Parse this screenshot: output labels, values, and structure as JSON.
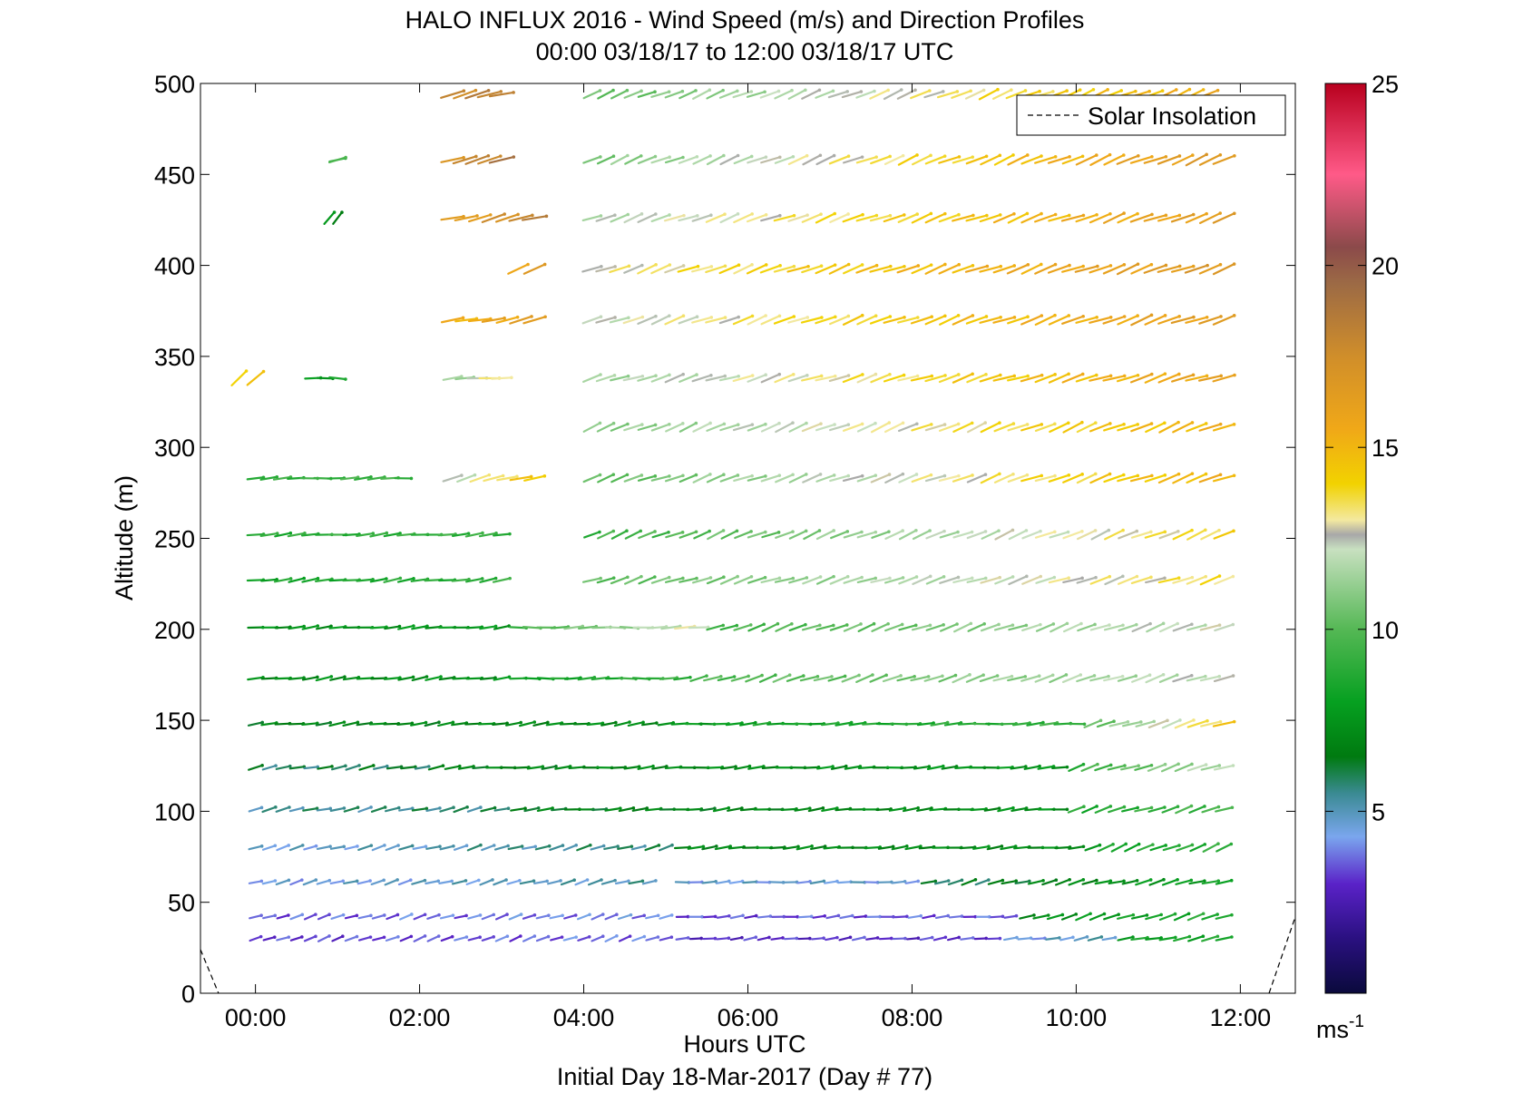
{
  "chart_data": {
    "type": "wind-barb",
    "title": "HALO INFLUX 2016 - Wind Speed (m/s) and Direction Profiles",
    "subtitle": "00:00 03/18/17 to 12:00 03/18/17  UTC",
    "xlabel": "Hours UTC",
    "xlabel2": "Initial Day 18-Mar-2017 (Day # 77)",
    "ylabel": "Altitude (m)",
    "xlim": [
      -0.67,
      12.67
    ],
    "ylim": [
      0,
      500
    ],
    "x_ticks": [
      {
        "value": 0,
        "label": "00:00"
      },
      {
        "value": 2,
        "label": "02:00"
      },
      {
        "value": 4,
        "label": "04:00"
      },
      {
        "value": 6,
        "label": "06:00"
      },
      {
        "value": 8,
        "label": "08:00"
      },
      {
        "value": 10,
        "label": "10:00"
      },
      {
        "value": 12,
        "label": "12:00"
      }
    ],
    "y_ticks": [
      {
        "value": 0,
        "label": "0"
      },
      {
        "value": 50,
        "label": "50"
      },
      {
        "value": 100,
        "label": "100"
      },
      {
        "value": 150,
        "label": "150"
      },
      {
        "value": 200,
        "label": "200"
      },
      {
        "value": 250,
        "label": "250"
      },
      {
        "value": 300,
        "label": "300"
      },
      {
        "value": 350,
        "label": "350"
      },
      {
        "value": 400,
        "label": "400"
      },
      {
        "value": 450,
        "label": "450"
      },
      {
        "value": 500,
        "label": "500"
      }
    ],
    "legend": {
      "label": "Solar Insolation",
      "position": "top-right",
      "style": "dashed"
    },
    "solar_insolation": [
      [
        [
          -0.67,
          24
        ],
        [
          -0.45,
          0
        ]
      ],
      [
        [
          12.35,
          0
        ],
        [
          12.67,
          42
        ]
      ]
    ],
    "colorbar": {
      "range": [
        0,
        25
      ],
      "ticks": [
        {
          "value": 5,
          "label": "5"
        },
        {
          "value": 10,
          "label": "10"
        },
        {
          "value": 15,
          "label": "15"
        },
        {
          "value": 20,
          "label": "20"
        },
        {
          "value": 25,
          "label": "25"
        }
      ],
      "unit": "ms",
      "unit_exponent": "-1",
      "stops": [
        {
          "v": 0,
          "color": "#0a0a3c"
        },
        {
          "v": 1.5,
          "color": "#2a1080"
        },
        {
          "v": 3,
          "color": "#5a22c8"
        },
        {
          "v": 4.3,
          "color": "#7aa6ee"
        },
        {
          "v": 5.5,
          "color": "#3a8a92"
        },
        {
          "v": 6.5,
          "color": "#007a10"
        },
        {
          "v": 8,
          "color": "#06a020"
        },
        {
          "v": 10,
          "color": "#55b855"
        },
        {
          "v": 12.2,
          "color": "#c8e0c0"
        },
        {
          "v": 12.6,
          "color": "#a8a8a8"
        },
        {
          "v": 13,
          "color": "#f3e9a0"
        },
        {
          "v": 14,
          "color": "#f2d200"
        },
        {
          "v": 15.5,
          "color": "#f0a818"
        },
        {
          "v": 17.5,
          "color": "#d08e2a"
        },
        {
          "v": 19.5,
          "color": "#9c6a45"
        },
        {
          "v": 20.5,
          "color": "#8b4a4a"
        },
        {
          "v": 22.5,
          "color": "#ff5a88"
        },
        {
          "v": 25,
          "color": "#b8001e"
        }
      ]
    },
    "altitudes": [
      30,
      42,
      61,
      80,
      101,
      124,
      148,
      173,
      201,
      227,
      252,
      283,
      311,
      338,
      370,
      398,
      426,
      458,
      494
    ],
    "times_start": 0,
    "times_step": 0.1667,
    "times_count": 60,
    "rows": [
      {
        "alt": 30,
        "segments": [
          {
            "t0": 0.0,
            "t1": 5.0,
            "s0": 3.2,
            "s1": 3.8,
            "dir": 250
          },
          {
            "t0": 5.2,
            "t1": 9.0,
            "s0": 3.0,
            "s1": 3.2,
            "dir": 262
          },
          {
            "t0": 9.2,
            "t1": 10.4,
            "s0": 4.2,
            "s1": 5.2,
            "dir": 260
          },
          {
            "t0": 10.6,
            "t1": 11.8,
            "s0": 8.0,
            "s1": 8.5,
            "dir": 258
          }
        ]
      },
      {
        "alt": 42,
        "segments": [
          {
            "t0": 0.0,
            "t1": 5.0,
            "s0": 3.5,
            "s1": 4.0,
            "dir": 252
          },
          {
            "t0": 5.2,
            "t1": 9.2,
            "s0": 3.4,
            "s1": 3.6,
            "dir": 264
          },
          {
            "t0": 9.4,
            "t1": 11.8,
            "s0": 7.2,
            "s1": 8.8,
            "dir": 252
          }
        ]
      },
      {
        "alt": 61,
        "segments": [
          {
            "t0": 0.0,
            "t1": 4.8,
            "s0": 4.4,
            "s1": 5.2,
            "dir": 254
          },
          {
            "t0": 5.2,
            "t1": 8.0,
            "s0": 4.6,
            "s1": 4.6,
            "dir": 266
          },
          {
            "t0": 8.2,
            "t1": 11.8,
            "s0": 5.8,
            "s1": 8.2,
            "dir": 255
          }
        ]
      },
      {
        "alt": 80,
        "segments": [
          {
            "t0": 0.0,
            "t1": 5.0,
            "s0": 4.5,
            "s1": 5.8,
            "dir": 254
          },
          {
            "t0": 5.2,
            "t1": 10.0,
            "s0": 7.0,
            "s1": 7.2,
            "dir": 264
          },
          {
            "t0": 10.2,
            "t1": 11.8,
            "s0": 8.2,
            "s1": 9.0,
            "dir": 248
          }
        ]
      },
      {
        "alt": 101,
        "segments": [
          {
            "t0": 0.0,
            "t1": 3.0,
            "s0": 5.4,
            "s1": 5.8,
            "dir": 256
          },
          {
            "t0": 3.2,
            "t1": 9.8,
            "s0": 6.6,
            "s1": 7.4,
            "dir": 264
          },
          {
            "t0": 10.0,
            "t1": 11.8,
            "s0": 8.5,
            "s1": 9.6,
            "dir": 252
          }
        ]
      },
      {
        "alt": 124,
        "segments": [
          {
            "t0": 0.0,
            "t1": 2.2,
            "s0": 5.8,
            "s1": 6.2,
            "dir": 258
          },
          {
            "t0": 2.4,
            "t1": 9.8,
            "s0": 6.8,
            "s1": 7.6,
            "dir": 265
          },
          {
            "t0": 10.0,
            "t1": 11.8,
            "s0": 9.0,
            "s1": 12.0,
            "dir": 252
          }
        ]
      },
      {
        "alt": 148,
        "segments": [
          {
            "t0": 0.0,
            "t1": 4.8,
            "s0": 6.8,
            "s1": 7.2,
            "dir": 262
          },
          {
            "t0": 5.0,
            "t1": 10.0,
            "s0": 7.8,
            "s1": 9.2,
            "dir": 266
          },
          {
            "t0": 10.2,
            "t1": 11.8,
            "s0": 10.2,
            "s1": 14.2,
            "dir": 252
          }
        ]
      },
      {
        "alt": 173,
        "segments": [
          {
            "t0": 0.0,
            "t1": 3.0,
            "s0": 7.2,
            "s1": 7.4,
            "dir": 262
          },
          {
            "t0": 3.2,
            "t1": 5.2,
            "s0": 8.0,
            "s1": 9.2,
            "dir": 268
          },
          {
            "t0": 5.4,
            "t1": 11.8,
            "s0": 9.6,
            "s1": 12.2,
            "dir": 252
          }
        ]
      },
      {
        "alt": 201,
        "segments": [
          {
            "t0": 0.0,
            "t1": 3.0,
            "s0": 7.4,
            "s1": 7.8,
            "dir": 264
          },
          {
            "t0": 3.2,
            "t1": 5.4,
            "s0": 9.6,
            "s1": 12.6,
            "dir": 268
          },
          {
            "t0": 5.6,
            "t1": 11.8,
            "s0": 9.4,
            "s1": 12.4,
            "dir": 250
          }
        ]
      },
      {
        "alt": 227,
        "segments": [
          {
            "t0": 0.0,
            "t1": 3.0,
            "s0": 8.2,
            "s1": 9.0,
            "dir": 262
          },
          {
            "t0": 4.1,
            "t1": 11.8,
            "s0": 10.0,
            "s1": 13.6,
            "dir": 252
          }
        ]
      },
      {
        "alt": 252,
        "segments": [
          {
            "t0": 0.0,
            "t1": 3.0,
            "s0": 8.8,
            "s1": 9.2,
            "dir": 264
          },
          {
            "t0": 4.1,
            "t1": 11.8,
            "s0": 9.2,
            "s1": 13.8,
            "dir": 248
          }
        ]
      },
      {
        "alt": 283,
        "segments": [
          {
            "t0": 0.0,
            "t1": 1.8,
            "s0": 9.0,
            "s1": 9.4,
            "dir": 266
          },
          {
            "t0": 2.4,
            "t1": 3.4,
            "s0": 12.0,
            "s1": 14.6,
            "dir": 255
          },
          {
            "t0": 4.1,
            "t1": 11.8,
            "s0": 10.0,
            "s1": 15.2,
            "dir": 250
          }
        ]
      },
      {
        "alt": 311,
        "segments": [
          {
            "t0": 4.1,
            "t1": 11.8,
            "s0": 10.8,
            "s1": 15.2,
            "dir": 248
          }
        ]
      },
      {
        "alt": 338,
        "segments": [
          {
            "t0": -0.2,
            "t1": 0.0,
            "s0": 14.5,
            "s1": 14.5,
            "dir": 230
          },
          {
            "t0": 0.7,
            "t1": 1.0,
            "s0": 8.0,
            "s1": 8.0,
            "dir": 272
          },
          {
            "t0": 2.4,
            "t1": 3.0,
            "s0": 11.0,
            "s1": 13.6,
            "dir": 264
          },
          {
            "t0": 4.1,
            "t1": 11.8,
            "s0": 11.4,
            "s1": 16.0,
            "dir": 252
          }
        ]
      },
      {
        "alt": 370,
        "segments": [
          {
            "t0": 2.4,
            "t1": 3.4,
            "s0": 15.0,
            "s1": 16.4,
            "dir": 258
          },
          {
            "t0": 4.1,
            "t1": 11.8,
            "s0": 12.2,
            "s1": 16.4,
            "dir": 250
          }
        ]
      },
      {
        "alt": 398,
        "segments": [
          {
            "t0": 3.2,
            "t1": 3.4,
            "s0": 16.2,
            "s1": 16.2,
            "dir": 240
          },
          {
            "t0": 4.1,
            "t1": 11.8,
            "s0": 12.8,
            "s1": 16.8,
            "dir": 250
          }
        ]
      },
      {
        "alt": 426,
        "segments": [
          {
            "t0": 0.9,
            "t1": 1.0,
            "s0": 7.2,
            "s1": 7.2,
            "dir": 215
          },
          {
            "t0": 2.4,
            "t1": 3.4,
            "s0": 16.0,
            "s1": 18.2,
            "dir": 256
          },
          {
            "t0": 4.1,
            "t1": 11.8,
            "s0": 11.8,
            "s1": 16.4,
            "dir": 250
          }
        ]
      },
      {
        "alt": 458,
        "segments": [
          {
            "t0": 1.0,
            "t1": 1.0,
            "s0": 9.2,
            "s1": 9.2,
            "dir": 256
          },
          {
            "t0": 2.4,
            "t1": 3.0,
            "s0": 17.4,
            "s1": 18.6,
            "dir": 256
          },
          {
            "t0": 4.1,
            "t1": 11.8,
            "s0": 10.6,
            "s1": 16.8,
            "dir": 248
          }
        ]
      },
      {
        "alt": 494,
        "segments": [
          {
            "t0": 2.4,
            "t1": 3.0,
            "s0": 17.8,
            "s1": 18.4,
            "dir": 256
          },
          {
            "t0": 4.1,
            "t1": 11.6,
            "s0": 10.2,
            "s1": 15.4,
            "dir": 248
          }
        ]
      }
    ]
  }
}
